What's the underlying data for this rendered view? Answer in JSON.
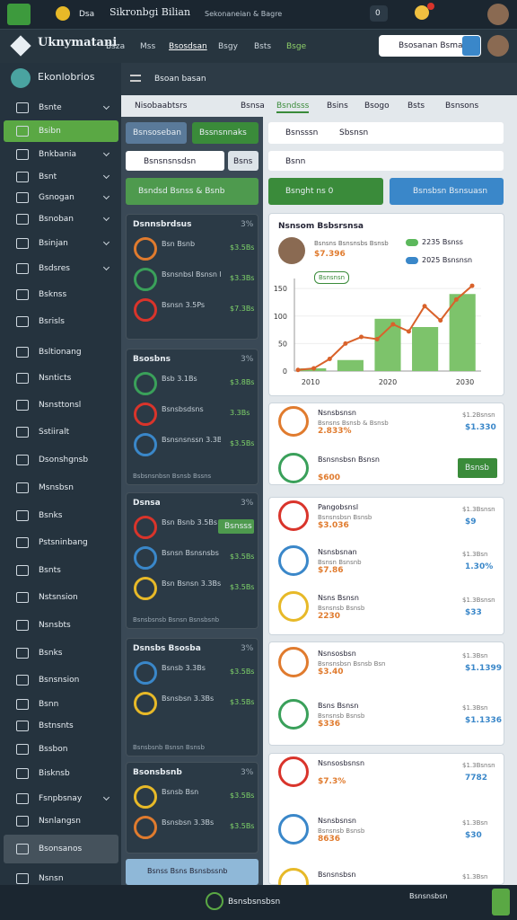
{
  "top_bar": {
    "app": "Dsa",
    "title": "Sikronbgi Bilian",
    "subtitle": "Sekonaneian & Bagre",
    "badge": "0"
  },
  "nav": {
    "brand": "Uknymatani",
    "menu": [
      "Bsza",
      "Mss",
      "Bsosdsan",
      "Bsgy",
      "Bsts",
      "Bsge"
    ],
    "search": "Bsosanan Bsma"
  },
  "sidebar": {
    "title": "Ekonlobrios",
    "items": [
      "Bsnte",
      "Bsibn",
      "Bnkbania",
      "Bsnt",
      "Gsnogan",
      "Bsnoban",
      "Bsinjan",
      "Bsdsres",
      "Bsknss",
      "Bsrisls",
      "Bsltionang",
      "Nsnticts",
      "Nsnsttonsl",
      "Sstiiralt",
      "Dsonshgnsb",
      "Msnsbsn",
      "Bsnks",
      "Pstsninbang",
      "Bsnts",
      "Nstsnsion",
      "Nsnsbts",
      "Bsnks",
      "Bsnsnsion",
      "Bsnn",
      "Bstnsnts",
      "Bssbon",
      "Bisknsb",
      "Fsnpbsnay",
      "Nsnlangsn",
      "Bsonsanos",
      "Nsnsn"
    ]
  },
  "main": {
    "header": "Bsoan basan",
    "tabs": [
      "Nisobaabtsrs",
      "Bsnsa",
      "Bsndsss",
      "Bsins",
      "Bsogo",
      "Bsts",
      "Bsnsons"
    ]
  },
  "middle": {
    "buttons": [
      "Bsnsoseban",
      "Bssnsnnaks"
    ],
    "filter": "Bsnsnsnsdsn",
    "filter_button": "Bsns",
    "banner": "Bsndsd Bsnss & Bsnb",
    "cards": [
      {
        "title": "Dsnnsbrdsus",
        "meta": "3%",
        "rows": [
          {
            "label": "Bsn Bsnb",
            "value": "$3.5Bs"
          },
          {
            "label": "Bsnsnbsl Bsnsn Bsnsnsbsdsn",
            "value": "$3.3Bs"
          },
          {
            "label": "Bsnsn 3.5Ps",
            "value": "$7.3Bs"
          }
        ]
      },
      {
        "title": "Bsosbns",
        "meta": "3%",
        "rows": [
          {
            "label": "Bsb 3.1Bs",
            "value": "$3.8Bs"
          },
          {
            "label": "Bsnsbsdsns",
            "value": "3.3Bs"
          },
          {
            "label": "Bsnsnsnssn 3.3Bs",
            "value": "$3.5Bs"
          }
        ],
        "footer": "Bsbsnsnbsn Bsnsb Bssns"
      },
      {
        "title": "Dsnsa",
        "meta": "3%",
        "rows": [
          {
            "label": "Bsn Bsnb 3.5Bs",
            "value": "Bsnsss"
          },
          {
            "label": "Bsnsn Bsnsnsbs",
            "value": "$3.5Bs"
          },
          {
            "label": "Bsn Bsnsn 3.3Bs",
            "value": "$3.5Bs"
          }
        ],
        "footer": "Bsnsbsnsb Bsnsn Bsnsbsnb"
      },
      {
        "title": "Dsnsbs Bsosba",
        "meta": "3%",
        "rows": [
          {
            "label": "Bsnsb 3.3Bs",
            "value": "$3.5Bs"
          },
          {
            "label": "Bsnsbsn 3.3Bs",
            "value": "$3.5Bs"
          }
        ],
        "footer": "Bsnsbsnb Bsnsn Bsnsb"
      },
      {
        "title": "Bsonsbsnb",
        "meta": "3%",
        "rows": [
          {
            "label": "Bsnsb Bsn",
            "value": "$3.5Bs"
          },
          {
            "label": "Bsnsbsn 3.3Bs",
            "value": "$3.5Bs"
          }
        ]
      }
    ],
    "footer_banner": "Bsnss Bsns Bsnsbssnb"
  },
  "right": {
    "filter": "Bsnsssn",
    "filter_meta": "Sbsnsn",
    "search": "Bsnn",
    "buttons": [
      "Bsnght ns 0",
      "Bsnsbsn Bsnsuasn"
    ],
    "chart": {
      "type": "bar-line",
      "title": "Nsnsom Bsbsrsnsa",
      "subtitle": "Bsnsns Bsnsnsbs Bsnsb",
      "value": "$7.396",
      "badge": "Bsnsnsn",
      "legend": [
        {
          "name": "2235 Bsnss",
          "color": "#5cb85c"
        },
        {
          "name": "2025 Bsnsnsn",
          "color": "#3a87c9"
        }
      ],
      "bars": [
        5,
        20,
        95,
        80,
        140
      ],
      "line": [
        2,
        5,
        22,
        50,
        62,
        58,
        85,
        72,
        118,
        92,
        130,
        155
      ],
      "bar_color": "#7dc36b",
      "line_color": "#d9622b",
      "ylim": [
        0,
        160
      ],
      "yticks": [
        0,
        50,
        100,
        150
      ],
      "xlabels": [
        "2010",
        "2020",
        "2030"
      ]
    },
    "items": [
      {
        "name": "Nsnsbsnsn",
        "sub": "Bsnsns Bsnsb & Bsnsb",
        "value": "2.833%",
        "right": "$1.2Bsnsn",
        "right2": "$1.330"
      },
      {
        "name": "Bsnsnsbsn Bsnsn",
        "sub": "",
        "value": "$600",
        "right": "Bsnsb",
        "right2": ""
      },
      {
        "name": "Pangobsnsl",
        "sub": "Bsnsnsbsn Bsnsb",
        "value": "$3.036",
        "right": "$1.3Bsnsn",
        "right2": "$9"
      },
      {
        "name": "Nsnsbsnan",
        "sub": "Bsnsn Bsnsnb",
        "value": "$7.86",
        "right": "$1.3Bsn",
        "right2": "1.30%"
      },
      {
        "name": "Nsns Bsnsn",
        "sub": "Bsnsnsb Bsnsb",
        "value": "2230",
        "right": "$1.3Bsnsn",
        "right2": "$33"
      },
      {
        "name": "Nsnsosbsn",
        "sub": "Bsnsnsbsn Bsnsb Bsn",
        "value": "$3.40",
        "right": "$1.3Bsn",
        "right2": "$1.1399"
      },
      {
        "name": "Bsns Bsnsn",
        "sub": "Bsnsnsb Bsnsb",
        "value": "$336",
        "right": "$1.3Bsn",
        "right2": "$1.1336"
      },
      {
        "name": "Nsnsosbsnsn",
        "sub": "",
        "value": "$7.3%",
        "right": "$1.3Bsnsn",
        "right2": "7782"
      },
      {
        "name": "Nsnsbsnsn",
        "sub": "Bsnsnsb Bsnsb",
        "value": "8636",
        "right": "$1.3Bsn",
        "right2": "$30"
      },
      {
        "name": "Bsnsnsbsn",
        "sub": "",
        "value": "",
        "right": "$1.3Bsn",
        "right2": ""
      }
    ]
  },
  "bottom_bar": {
    "label": "Bsnsbsnsbsn",
    "right": "Bsnsnsbsn"
  }
}
